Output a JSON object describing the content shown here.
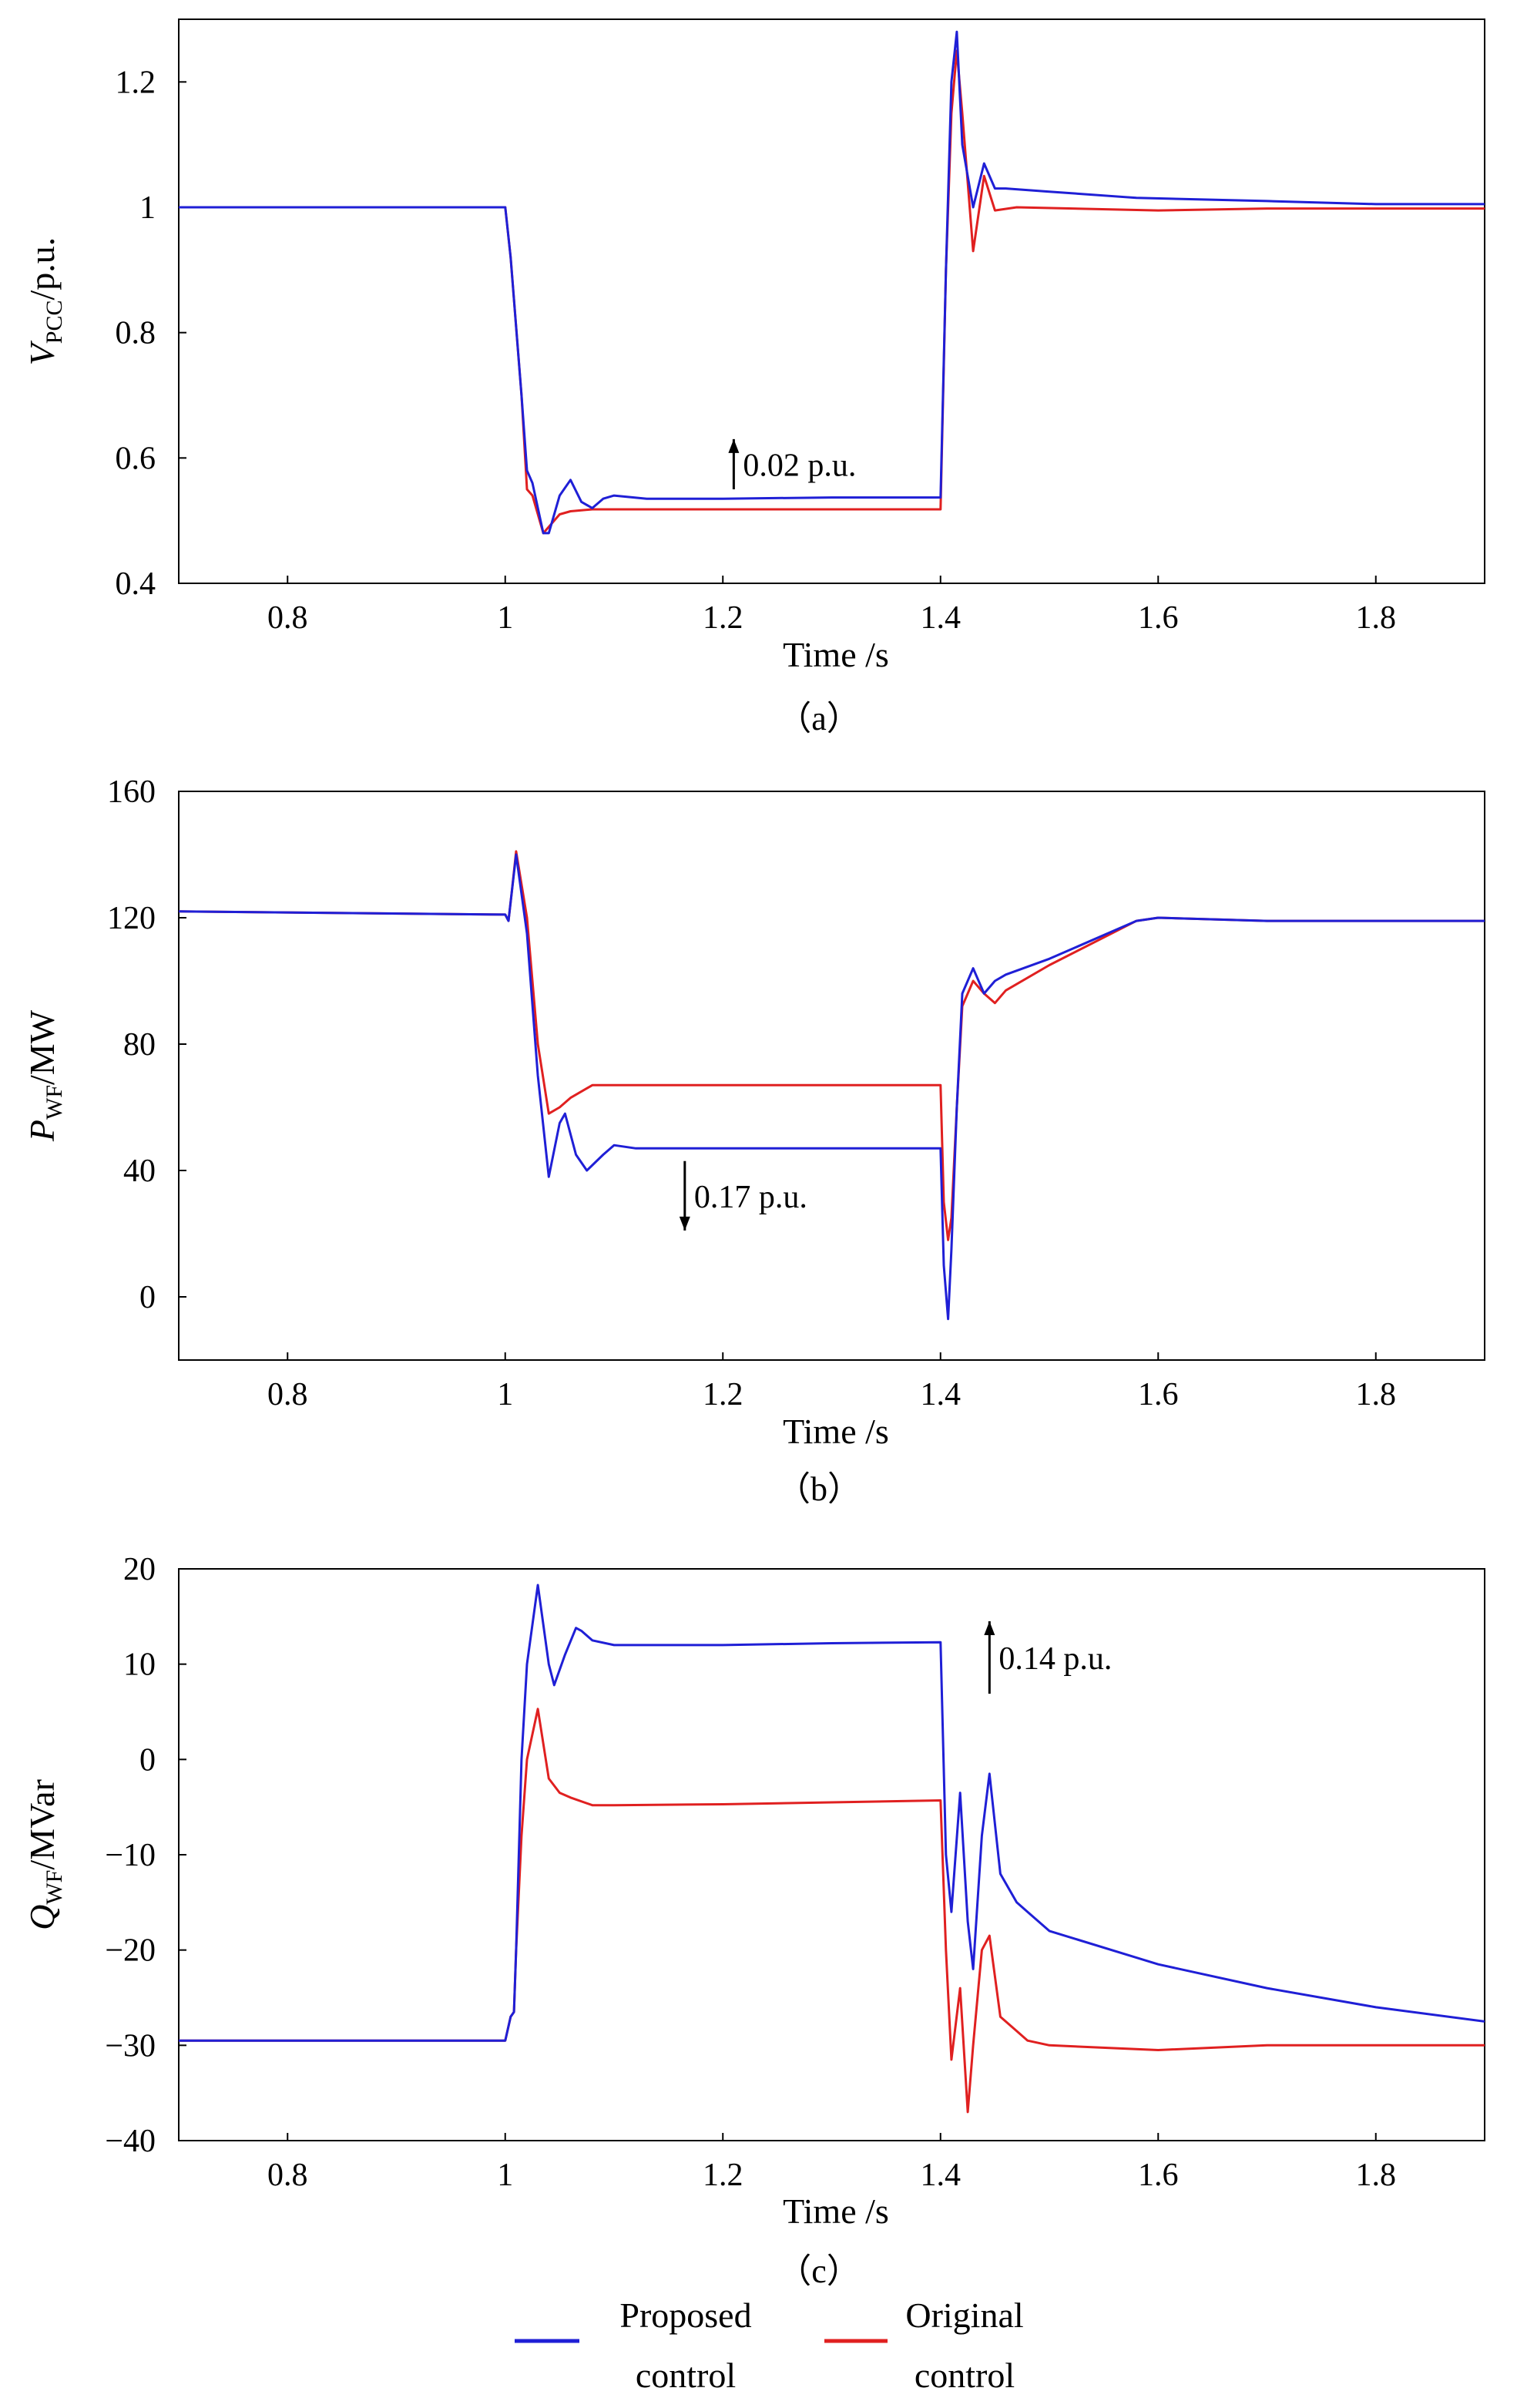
{
  "colors": {
    "proposed": "#1f1fd6",
    "original": "#e02020",
    "axis": "#000000"
  },
  "legend": [
    {
      "label_line1": "Proposed",
      "label_line2": "control",
      "color": "#1f1fd6"
    },
    {
      "label_line1": "Original",
      "label_line2": "control",
      "color": "#e02020"
    }
  ],
  "chart_data": [
    {
      "type": "line",
      "caption": "（a）",
      "xlabel": "Time /s",
      "ylabel_main": "V",
      "ylabel_sub": "PCC",
      "ylabel_rest": "/p.u.",
      "xlim": [
        0.7,
        1.9
      ],
      "ylim": [
        0.4,
        1.3
      ],
      "xticks": [
        0.8,
        1,
        1.2,
        1.4,
        1.6,
        1.8
      ],
      "xtick_labels": [
        "0.8",
        "1",
        "1.2",
        "1.4",
        "1.6",
        "1.8"
      ],
      "yticks": [
        0.4,
        0.6,
        0.8,
        1,
        1.2
      ],
      "ytick_labels": [
        "0.4",
        "0.6",
        "0.8",
        "1",
        "1.2"
      ],
      "annotation": {
        "text": "0.02 p.u.",
        "x": 1.21,
        "y_from": 0.55,
        "y_to": 0.63,
        "direction": "up"
      },
      "series": [
        {
          "name": "Proposed control",
          "color": "#1f1fd6",
          "x": [
            0.7,
            1.0,
            1.005,
            1.015,
            1.02,
            1.025,
            1.035,
            1.04,
            1.05,
            1.06,
            1.07,
            1.08,
            1.09,
            1.1,
            1.13,
            1.2,
            1.3,
            1.4,
            1.405,
            1.41,
            1.415,
            1.42,
            1.43,
            1.44,
            1.45,
            1.46,
            1.5,
            1.58,
            1.7,
            1.8,
            1.9
          ],
          "values": [
            1.0,
            1.0,
            0.92,
            0.7,
            0.58,
            0.56,
            0.48,
            0.48,
            0.54,
            0.565,
            0.53,
            0.52,
            0.535,
            0.54,
            0.535,
            0.535,
            0.537,
            0.537,
            0.9,
            1.2,
            1.28,
            1.1,
            1.0,
            1.07,
            1.03,
            1.03,
            1.025,
            1.015,
            1.01,
            1.005,
            1.005
          ]
        },
        {
          "name": "Original control",
          "color": "#e02020",
          "x": [
            0.7,
            1.0,
            1.005,
            1.015,
            1.02,
            1.025,
            1.035,
            1.04,
            1.05,
            1.06,
            1.08,
            1.1,
            1.2,
            1.3,
            1.4,
            1.405,
            1.41,
            1.415,
            1.42,
            1.43,
            1.44,
            1.45,
            1.47,
            1.6,
            1.7,
            1.9
          ],
          "values": [
            1.0,
            1.0,
            0.92,
            0.7,
            0.55,
            0.54,
            0.48,
            0.49,
            0.51,
            0.515,
            0.518,
            0.518,
            0.518,
            0.518,
            0.518,
            0.9,
            1.15,
            1.25,
            1.15,
            0.93,
            1.05,
            0.995,
            1.0,
            0.995,
            0.998,
            0.998
          ]
        }
      ]
    },
    {
      "type": "line",
      "caption": "（b）",
      "xlabel": "Time /s",
      "ylabel_main": "P",
      "ylabel_sub": "WF",
      "ylabel_rest": "/MW",
      "xlim": [
        0.7,
        1.9
      ],
      "ylim": [
        -20,
        160
      ],
      "xticks": [
        0.8,
        1,
        1.2,
        1.4,
        1.6,
        1.8
      ],
      "xtick_labels": [
        "0.8",
        "1",
        "1.2",
        "1.4",
        "1.6",
        "1.8"
      ],
      "yticks": [
        0,
        40,
        80,
        120,
        160
      ],
      "ytick_labels": [
        "0",
        "40",
        "80",
        "120",
        "160"
      ],
      "annotation": {
        "text": "0.17 p.u.",
        "x": 1.165,
        "y_from": 43,
        "y_to": 21,
        "direction": "down"
      },
      "series": [
        {
          "name": "Proposed control",
          "color": "#1f1fd6",
          "x": [
            0.7,
            1.0,
            1.003,
            1.006,
            1.01,
            1.02,
            1.03,
            1.04,
            1.05,
            1.055,
            1.065,
            1.075,
            1.09,
            1.1,
            1.12,
            1.2,
            1.3,
            1.4,
            1.403,
            1.407,
            1.41,
            1.415,
            1.42,
            1.43,
            1.44,
            1.45,
            1.46,
            1.5,
            1.58,
            1.6,
            1.7,
            1.8,
            1.9
          ],
          "values": [
            122,
            121,
            119,
            128,
            140,
            115,
            70,
            38,
            55,
            58,
            45,
            40,
            45,
            48,
            47,
            47,
            47,
            47,
            10,
            -7,
            15,
            60,
            96,
            104,
            96,
            100,
            102,
            107,
            119,
            120,
            119,
            119,
            119
          ]
        },
        {
          "name": "Original control",
          "color": "#e02020",
          "x": [
            0.7,
            1.0,
            1.003,
            1.006,
            1.01,
            1.02,
            1.03,
            1.04,
            1.05,
            1.06,
            1.08,
            1.1,
            1.2,
            1.3,
            1.4,
            1.403,
            1.407,
            1.41,
            1.415,
            1.42,
            1.43,
            1.44,
            1.45,
            1.46,
            1.5,
            1.58,
            1.6,
            1.7,
            1.8,
            1.9
          ],
          "values": [
            122,
            121,
            119,
            128,
            141,
            120,
            80,
            58,
            60,
            63,
            67,
            67,
            67,
            67,
            67,
            30,
            18,
            25,
            60,
            92,
            100,
            96,
            93,
            97,
            105,
            119,
            120,
            119,
            119,
            119
          ]
        }
      ]
    },
    {
      "type": "line",
      "caption": "（c）",
      "xlabel": "Time /s",
      "ylabel_main": "Q",
      "ylabel_sub": "WF",
      "ylabel_rest": "/MVar",
      "xlim": [
        0.7,
        1.9
      ],
      "ylim": [
        -40,
        20
      ],
      "xticks": [
        0.8,
        1,
        1.2,
        1.4,
        1.6,
        1.8
      ],
      "xtick_labels": [
        "0.8",
        "1",
        "1.2",
        "1.4",
        "1.6",
        "1.8"
      ],
      "yticks": [
        -40,
        -30,
        -20,
        -10,
        0,
        10,
        20
      ],
      "ytick_labels": [
        "−40",
        "−30",
        "−20",
        "−10",
        "0",
        "10",
        "20"
      ],
      "annotation": {
        "text": "0.14 p.u.",
        "x": 1.445,
        "y_from": 6.9,
        "y_to": 14.5,
        "direction": "up"
      },
      "series": [
        {
          "name": "Proposed control",
          "color": "#1f1fd6",
          "x": [
            0.7,
            1.0,
            1.005,
            1.008,
            1.01,
            1.015,
            1.02,
            1.03,
            1.04,
            1.045,
            1.055,
            1.065,
            1.07,
            1.08,
            1.1,
            1.2,
            1.3,
            1.4,
            1.405,
            1.41,
            1.418,
            1.425,
            1.43,
            1.438,
            1.445,
            1.455,
            1.47,
            1.48,
            1.5,
            1.6,
            1.7,
            1.8,
            1.9
          ],
          "values": [
            -29.5,
            -29.5,
            -27,
            -26.5,
            -20,
            0,
            10,
            18.3,
            10,
            7.8,
            11,
            13.8,
            13.5,
            12.5,
            12,
            12,
            12.2,
            12.3,
            -10,
            -16,
            -3.5,
            -17,
            -22,
            -8,
            -1.5,
            -12,
            -15,
            -16,
            -18,
            -21.5,
            -24,
            -26,
            -27.5
          ]
        },
        {
          "name": "Original control",
          "color": "#e02020",
          "x": [
            0.7,
            1.0,
            1.005,
            1.008,
            1.01,
            1.015,
            1.02,
            1.03,
            1.04,
            1.05,
            1.06,
            1.08,
            1.1,
            1.2,
            1.3,
            1.4,
            1.405,
            1.41,
            1.418,
            1.425,
            1.43,
            1.438,
            1.445,
            1.455,
            1.47,
            1.48,
            1.5,
            1.6,
            1.7,
            1.8,
            1.9
          ],
          "values": [
            -29.5,
            -29.5,
            -27,
            -26.5,
            -20,
            -8,
            0,
            5.3,
            -2,
            -3.5,
            -4,
            -4.8,
            -4.8,
            -4.7,
            -4.5,
            -4.3,
            -20,
            -31.5,
            -24,
            -37,
            -30,
            -20,
            -18.5,
            -27,
            -28.5,
            -29.5,
            -30,
            -30.5,
            -30,
            -30,
            -30
          ]
        }
      ]
    }
  ]
}
